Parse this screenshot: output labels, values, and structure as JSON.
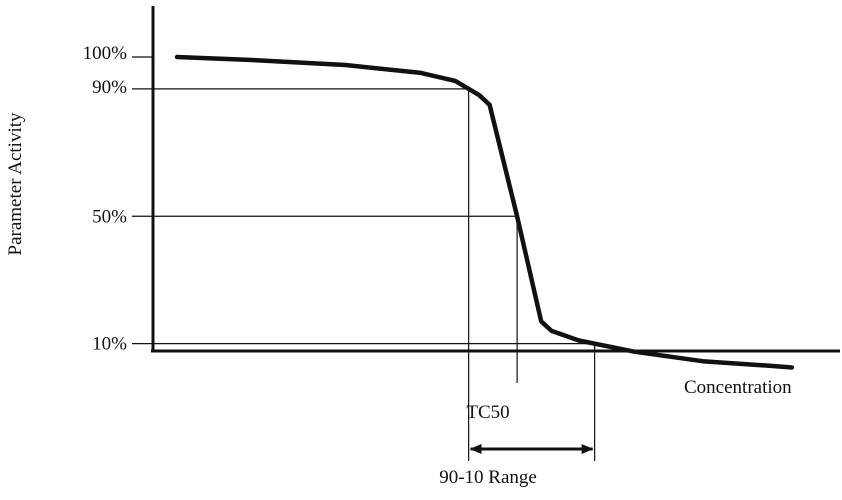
{
  "chart_data": {
    "type": "line",
    "title": "",
    "xlabel": "Concentration",
    "ylabel": "Parameter Activity",
    "y_tick_labels": [
      {
        "label": "100%",
        "value": 100
      },
      {
        "label": "90%",
        "value": 90
      },
      {
        "label": "50%",
        "value": 50
      },
      {
        "label": "10%",
        "value": 10
      }
    ],
    "ylim": [
      0,
      100
    ],
    "x_scale": "arbitrary (unlabeled)",
    "series": [
      {
        "points": [
          {
            "x": 0.035,
            "y": 100
          },
          {
            "x": 0.15,
            "y": 99
          },
          {
            "x": 0.28,
            "y": 97.5
          },
          {
            "x": 0.39,
            "y": 95
          },
          {
            "x": 0.44,
            "y": 92.5
          },
          {
            "x": 0.475,
            "y": 88
          },
          {
            "x": 0.49,
            "y": 85
          },
          {
            "x": 0.53,
            "y": 50
          },
          {
            "x": 0.565,
            "y": 17
          },
          {
            "x": 0.58,
            "y": 14
          },
          {
            "x": 0.62,
            "y": 11
          },
          {
            "x": 0.7,
            "y": 7.5
          },
          {
            "x": 0.8,
            "y": 4.5
          },
          {
            "x": 0.9,
            "y": 3
          },
          {
            "x": 0.93,
            "y": 2.5
          }
        ]
      }
    ],
    "annotations": {
      "tc50_label": "TC50",
      "range_label": "90-10 Range"
    },
    "grid": false,
    "reference_lines": "horizontal lines at 90%, 50%, 10% to curve; vertical drop lines at 90%, 50%, 10% crossings"
  }
}
